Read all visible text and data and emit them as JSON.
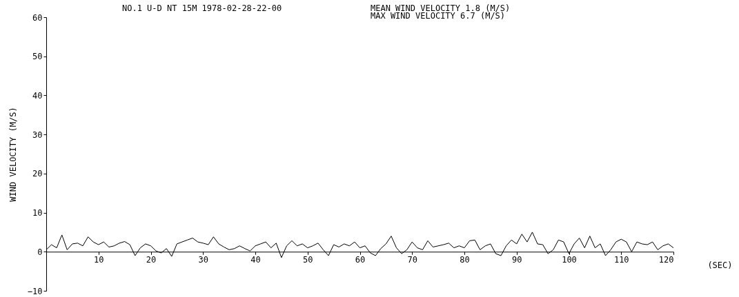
{
  "chart_data": {
    "type": "line",
    "title": "NO.1 U-D  NT     15M  1978-02-28-22-00",
    "annotations": [
      "MEAN WIND VELOCITY   1.8 (M/S)",
      "MAX WIND VELOCITY    6.7 (M/S)"
    ],
    "xlabel": "(SEC)",
    "ylabel": "WIND VELOCITY (M/S)",
    "x": [
      0,
      1,
      2,
      3,
      4,
      5,
      6,
      7,
      8,
      9,
      10,
      11,
      12,
      13,
      14,
      15,
      16,
      17,
      18,
      19,
      20,
      21,
      22,
      23,
      24,
      25,
      26,
      27,
      28,
      29,
      30,
      31,
      32,
      33,
      34,
      35,
      36,
      37,
      38,
      39,
      40,
      41,
      42,
      43,
      44,
      45,
      46,
      47,
      48,
      49,
      50,
      51,
      52,
      53,
      54,
      55,
      56,
      57,
      58,
      59,
      60,
      61,
      62,
      63,
      64,
      65,
      66,
      67,
      68,
      69,
      70,
      71,
      72,
      73,
      74,
      75,
      76,
      77,
      78,
      79,
      80,
      81,
      82,
      83,
      84,
      85,
      86,
      87,
      88,
      89,
      90,
      91,
      92,
      93,
      94,
      95,
      96,
      97,
      98,
      99,
      100,
      101,
      102,
      103,
      104,
      105,
      106,
      107,
      108,
      109,
      110,
      111,
      112,
      113,
      114,
      115,
      116,
      117,
      118,
      119,
      120
    ],
    "series": [
      {
        "color": "#000000",
        "values": [
          0.5,
          1.8,
          1.0,
          4.3,
          0.5,
          2.0,
          2.2,
          1.5,
          3.8,
          2.5,
          1.8,
          2.5,
          1.2,
          1.5,
          2.2,
          2.6,
          1.8,
          -1.0,
          1.0,
          2.0,
          1.5,
          0.2,
          -0.3,
          0.8,
          -1.2,
          2.0,
          2.5,
          3.0,
          3.5,
          2.5,
          2.2,
          1.8,
          3.8,
          2.0,
          1.2,
          0.5,
          0.8,
          1.5,
          0.8,
          0.2,
          1.5,
          2.0,
          2.5,
          1.0,
          2.2,
          -1.5,
          1.5,
          2.8,
          1.5,
          2.0,
          1.0,
          1.5,
          2.2,
          0.5,
          -1.0,
          1.8,
          1.2,
          2.0,
          1.5,
          2.5,
          1.0,
          1.5,
          -0.3,
          -1.0,
          0.8,
          2.0,
          4.0,
          1.0,
          -0.5,
          0.5,
          2.5,
          1.0,
          0.5,
          2.8,
          1.2,
          1.5,
          1.8,
          2.2,
          1.0,
          1.5,
          1.0,
          2.8,
          3.0,
          0.5,
          1.5,
          2.0,
          -0.5,
          -1.0,
          1.5,
          3.0,
          2.0,
          4.5,
          2.5,
          5.0,
          2.0,
          1.8,
          -0.5,
          0.5,
          3.0,
          2.5,
          -0.5,
          2.0,
          3.5,
          1.0,
          4.0,
          1.0,
          2.0,
          -1.0,
          0.5,
          2.5,
          3.2,
          2.5,
          0.0,
          2.5,
          2.0,
          1.8,
          2.5,
          0.5,
          1.5,
          2.0,
          1.0
        ]
      }
    ],
    "xlim": [
      0,
      120
    ],
    "xticks": [
      {
        "value": 0,
        "label": null
      },
      10,
      20,
      30,
      40,
      50,
      60,
      70,
      80,
      90,
      100,
      110,
      120
    ],
    "ylim": [
      -10,
      60
    ],
    "yticks": [
      -10,
      0,
      10,
      20,
      30,
      40,
      50,
      60
    ],
    "grid": false,
    "marker": "none",
    "line_style": "solid"
  }
}
